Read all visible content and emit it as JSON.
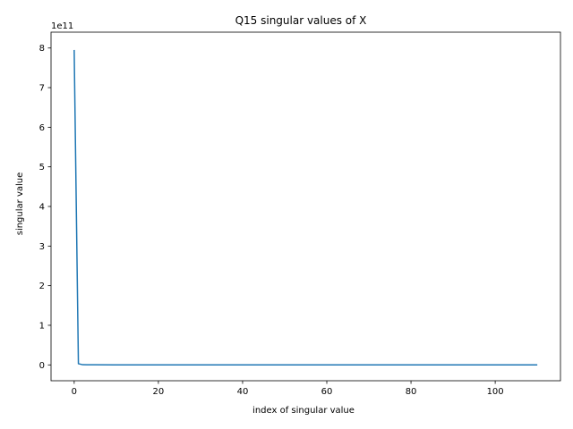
{
  "chart_data": {
    "type": "line",
    "title": "Q15 singular values of X",
    "xlabel": "index of singular value",
    "ylabel": "singular value",
    "y_offset_label": "1e11",
    "y_scale": 100000000000,
    "xlim": [
      -5.5,
      115.5
    ],
    "ylim": [
      -0.4,
      8.4
    ],
    "x_ticks": [
      0,
      20,
      40,
      60,
      80,
      100
    ],
    "x_tick_labels": [
      "0",
      "20",
      "40",
      "60",
      "80",
      "100"
    ],
    "y_ticks": [
      0,
      1,
      2,
      3,
      4,
      5,
      6,
      7,
      8
    ],
    "y_tick_labels": [
      "0",
      "1",
      "2",
      "3",
      "4",
      "5",
      "6",
      "7",
      "8"
    ],
    "grid": false,
    "series": [
      {
        "color": "#1f77b4",
        "x": [
          0,
          1,
          2,
          3,
          5,
          10,
          20,
          40,
          60,
          80,
          100,
          110
        ],
        "y": [
          7.95,
          0.03,
          0.005,
          0.003,
          0.002,
          0.001,
          0.0008,
          0.0005,
          0.0004,
          0.0003,
          0.0002,
          0.0001
        ]
      }
    ]
  }
}
